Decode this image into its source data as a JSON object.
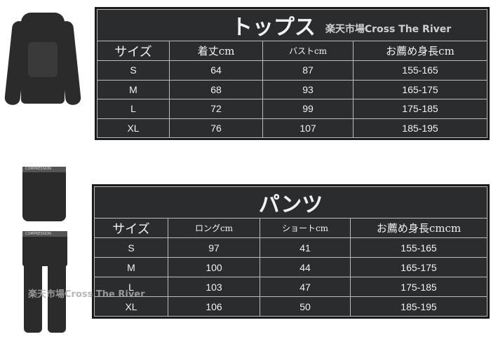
{
  "brand": "楽天市場Cross The River",
  "tops": {
    "title": "トップス",
    "headers": [
      "サイズ",
      "着丈cm",
      "バストcm",
      "お薦め身長cm"
    ],
    "rows": [
      [
        "S",
        "64",
        "87",
        "155-165"
      ],
      [
        "M",
        "68",
        "93",
        "165-175"
      ],
      [
        "L",
        "72",
        "99",
        "175-185"
      ],
      [
        "XL",
        "76",
        "107",
        "185-195"
      ]
    ]
  },
  "pants": {
    "title": "パンツ",
    "headers": [
      "サイズ",
      "ロングcm",
      "ショートcm",
      "お薦め身長cmcm"
    ],
    "rows": [
      [
        "S",
        "97",
        "41",
        "155-165"
      ],
      [
        "M",
        "100",
        "44",
        "165-175"
      ],
      [
        "L",
        "103",
        "47",
        "175-185"
      ],
      [
        "XL",
        "106",
        "50",
        "185-195"
      ]
    ]
  },
  "watermark": "楽天市場Cross The River",
  "product_labels": {
    "shorts": "COMPRESSION",
    "tights": "COMPRESSION"
  }
}
